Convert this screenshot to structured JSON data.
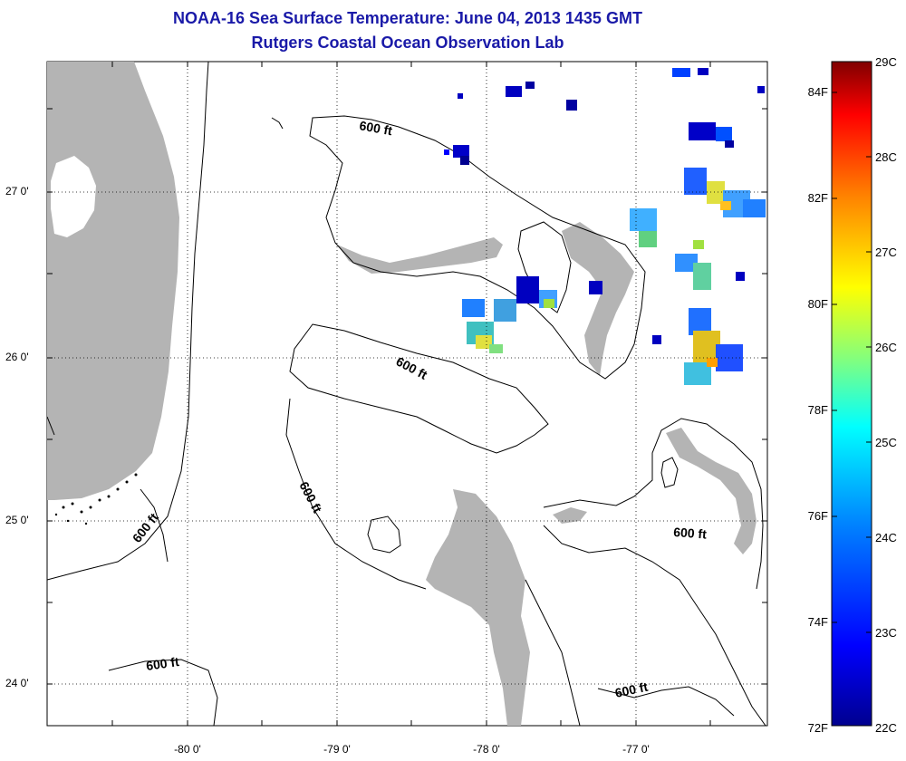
{
  "title": {
    "line1": "NOAA-16 Sea Surface Temperature:  June 04, 2013 1435 GMT",
    "line2": "Rutgers Coastal Ocean Observation Lab"
  },
  "map": {
    "lon_ticks": [
      "-80 0'",
      "-79 0'",
      "-78 0'",
      "-77 0'"
    ],
    "lat_ticks": [
      "27 0'",
      "26 0'",
      "25 0'",
      "24 0'"
    ],
    "contour_label": "600 ft",
    "land_color": "#b4b4b4",
    "contour_color": "#000000"
  },
  "colorbar": {
    "fahrenheit": [
      "84F",
      "82F",
      "80F",
      "78F",
      "76F",
      "74F",
      "72F"
    ],
    "celsius": [
      "29C",
      "28C",
      "27C",
      "26C",
      "25C",
      "24C",
      "23C",
      "22C"
    ],
    "colors": [
      "#00008f",
      "#0000ff",
      "#0080ff",
      "#00ffff",
      "#80ff80",
      "#ffff00",
      "#ff8000",
      "#ff0000",
      "#800000"
    ]
  }
}
